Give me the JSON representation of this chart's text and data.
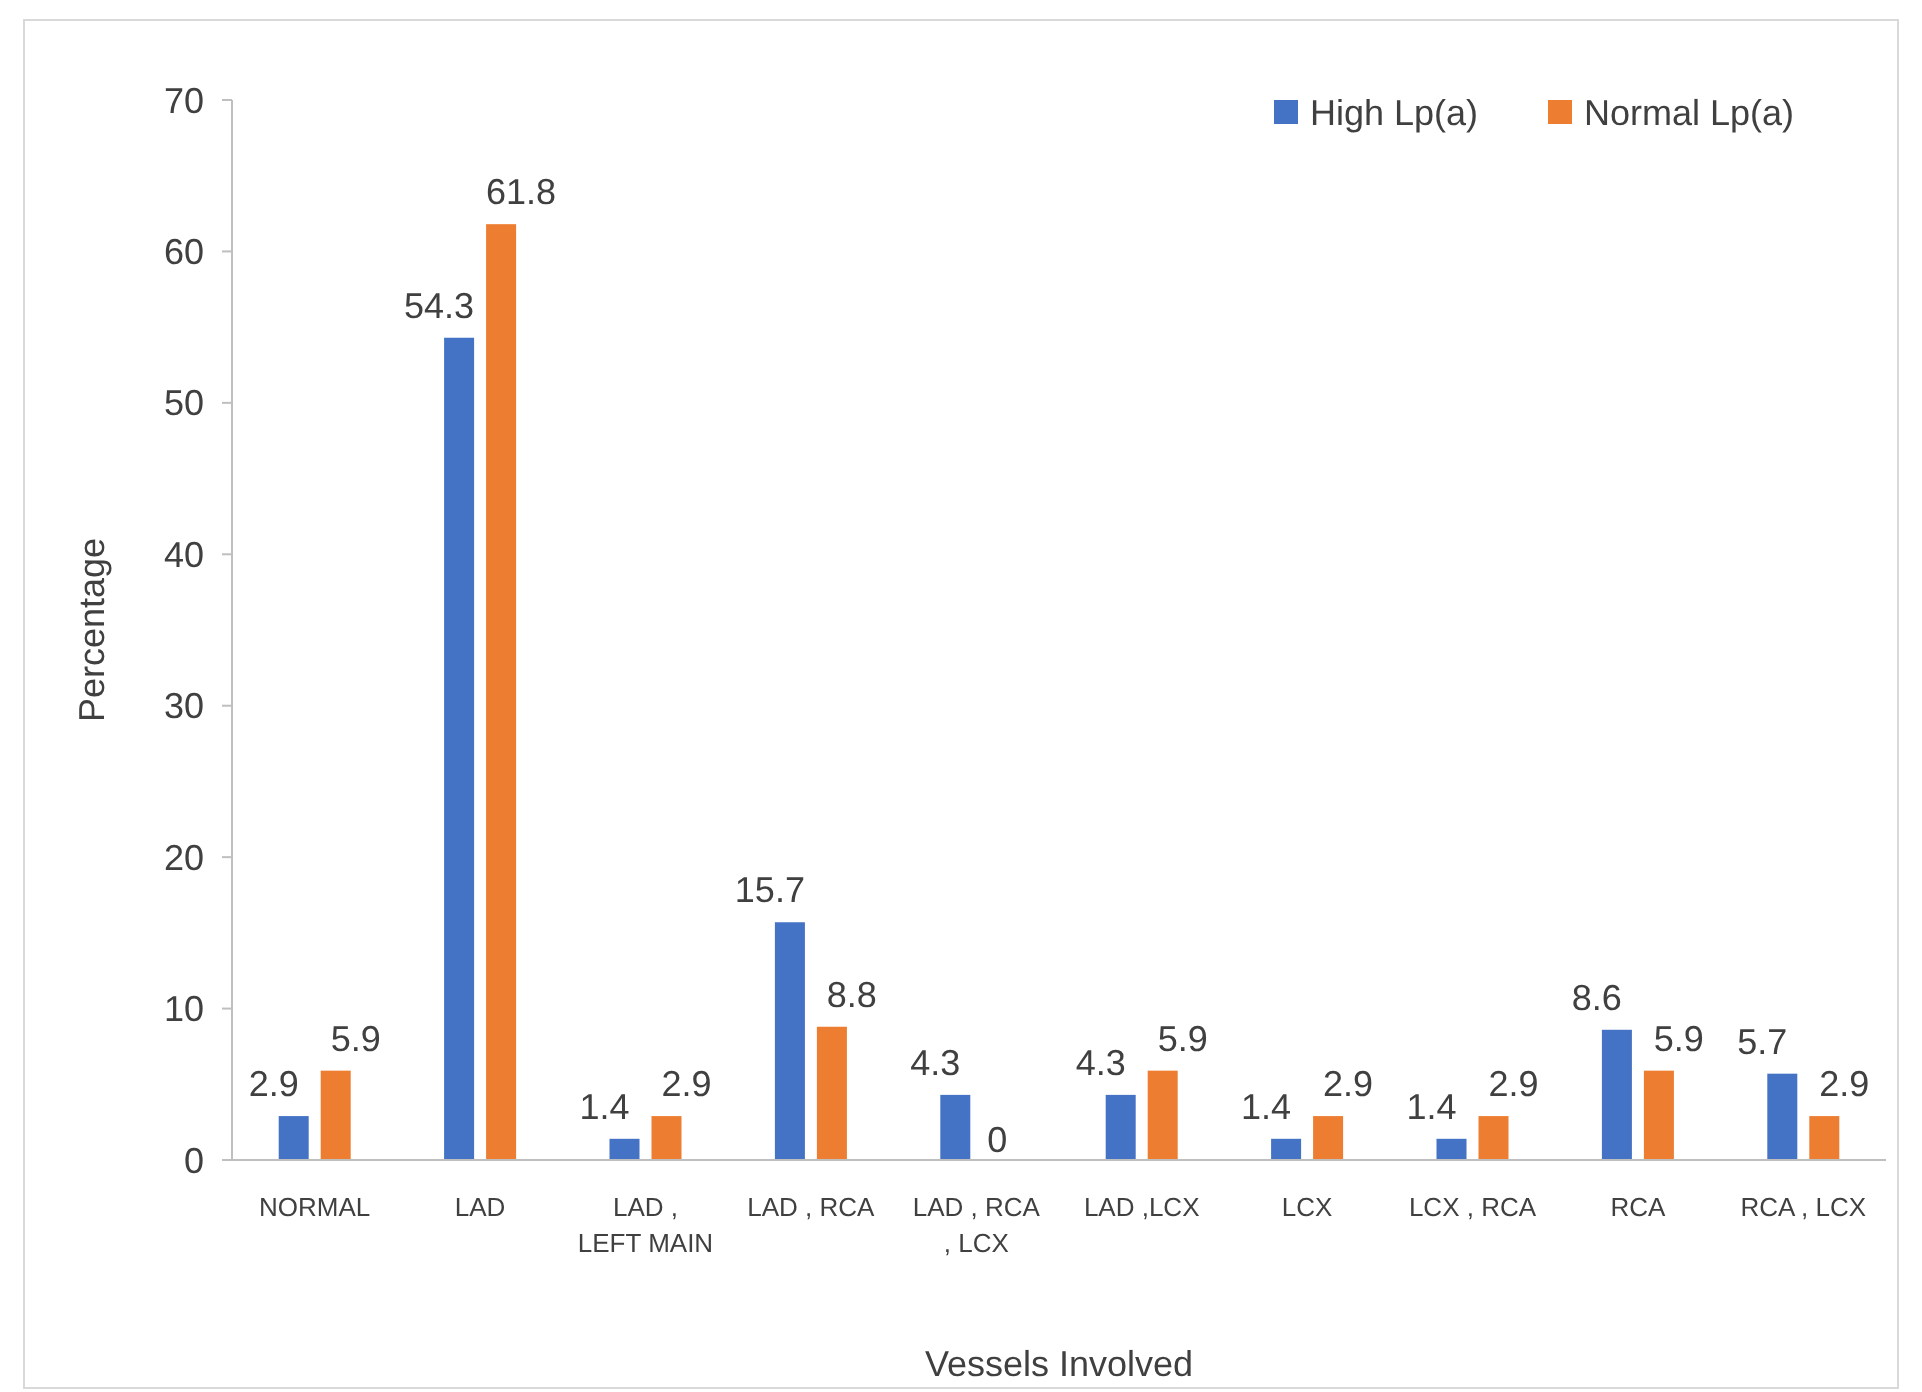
{
  "chart_data": {
    "type": "bar",
    "xlabel": "Vessels Involved",
    "ylabel": "Percentage",
    "categories": [
      "NORMAL",
      "LAD",
      "LAD , LEFT MAIN",
      "LAD , RCA",
      "LAD , RCA , LCX",
      "LAD ,LCX",
      "LCX",
      "LCX , RCA",
      "RCA",
      "RCA , LCX"
    ],
    "series": [
      {
        "name": "High Lp(a)",
        "color": "#4472c4",
        "values": [
          2.9,
          54.3,
          1.4,
          15.7,
          4.3,
          4.3,
          1.4,
          1.4,
          8.6,
          5.7
        ]
      },
      {
        "name": "Normal Lp(a)",
        "color": "#ed7d31",
        "values": [
          5.9,
          61.8,
          2.9,
          8.8,
          0,
          5.9,
          2.9,
          2.9,
          5.9,
          2.9
        ]
      }
    ],
    "ylim": [
      0,
      70
    ],
    "yticks": [
      0,
      10,
      20,
      30,
      40,
      50,
      60,
      70
    ],
    "data_labels": true,
    "legend": "top right",
    "grid": false
  }
}
